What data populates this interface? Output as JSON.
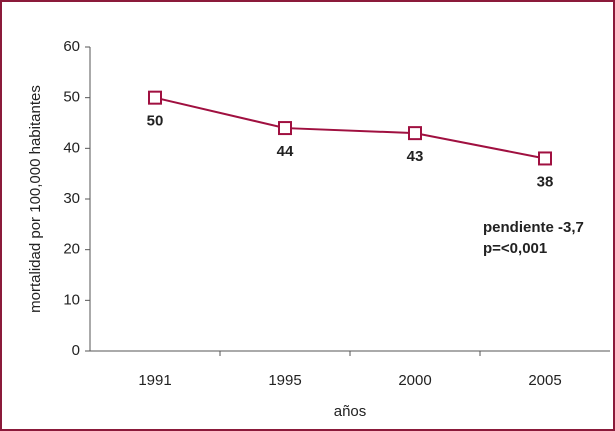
{
  "chart_data": {
    "type": "line",
    "categories": [
      "1991",
      "1995",
      "2000",
      "2005"
    ],
    "values": [
      50,
      44,
      43,
      38
    ],
    "color": "#a01040",
    "xlabel": "años",
    "ylabel": "mortalidad por 100,000 habitantes",
    "ylim": [
      0,
      60
    ],
    "yticks": [
      0,
      10,
      20,
      30,
      40,
      50,
      60
    ],
    "annotations": [
      "pendiente -3,7",
      "p=<0,001"
    ]
  }
}
